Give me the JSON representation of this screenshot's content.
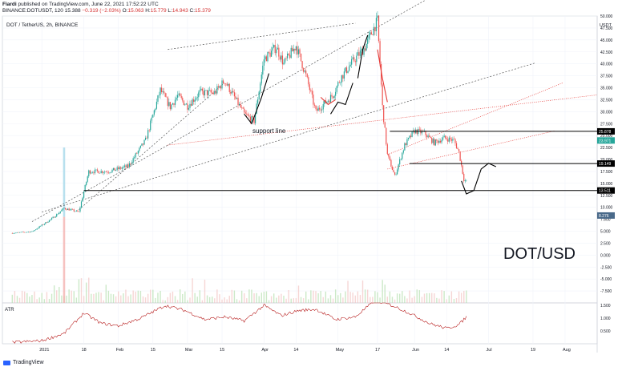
{
  "header": {
    "author": "Fiardi",
    "published": "published on TradingView.com, June 22, 2021 17:52:22 UTC",
    "symbol_line": "BINANCE:DOTUSDT, 120",
    "last": "15.388",
    "change": "−0.319 (−2.03%)",
    "o_label": "O:",
    "o_val": "15.063",
    "h_label": "H:",
    "h_val": "15.779",
    "l_label": "L:",
    "l_val": "14.943",
    "c_label": "C:",
    "c_val": "15.379"
  },
  "chart_title": "DOT / TetherUS, 2h, BINANCE",
  "watermark": "DOT/USD",
  "annotation": "support line",
  "atr_label": "ATR",
  "footer_brand": "TradingView",
  "colors": {
    "up": "#26a69a",
    "down": "#ef5350",
    "atr": "#b71c1c",
    "trend_dashed": "#555555",
    "trend_red": "#e53935",
    "level": "#000000",
    "blue": "#2962ff",
    "watermark": "#131722"
  },
  "chart_data": [
    {
      "type": "line",
      "series": [
        {
          "x": [
            "2020-12-20",
            "2020-12-28",
            "2021-01-05",
            "2021-01-10",
            "2021-01-16",
            "2021-01-20",
            "2021-01-28",
            "2021-02-05",
            "2021-02-12",
            "2021-02-18",
            "2021-02-22",
            "2021-02-25",
            "2021-03-01",
            "2021-03-06",
            "2021-03-12",
            "2021-03-16",
            "2021-03-20",
            "2021-03-24",
            "2021-03-28",
            "2021-04-01",
            "2021-04-06",
            "2021-04-09",
            "2021-04-14",
            "2021-04-18",
            "2021-04-22",
            "2021-04-25",
            "2021-04-29",
            "2021-05-02",
            "2021-05-07",
            "2021-05-12",
            "2021-05-15",
            "2021-05-17",
            "2021-05-19",
            "2021-05-21",
            "2021-05-24",
            "2021-05-28",
            "2021-06-01",
            "2021-06-05",
            "2021-06-09",
            "2021-06-13",
            "2021-06-17",
            "2021-06-19",
            "2021-06-20",
            "2021-06-21",
            "2021-06-22"
          ],
          "y": [
            4.6,
            4.9,
            7.6,
            9.8,
            9.0,
            17.5,
            17.5,
            18.6,
            24.0,
            34.5,
            31.0,
            33.3,
            31.2,
            34.0,
            33.9,
            36.5,
            33.0,
            29.5,
            28.0,
            41.0,
            43.5,
            40.0,
            43.8,
            37.5,
            30.0,
            31.5,
            33.5,
            37.0,
            40.5,
            43.5,
            47.0,
            49.0,
            31.0,
            21.0,
            16.5,
            23.0,
            26.0,
            25.5,
            23.5,
            24.5,
            24.0,
            21.5,
            18.7,
            15.8,
            15.4
          ]
        }
      ],
      "annotations": [
        "support line",
        "DOT/USD"
      ],
      "levels": [
        25.878,
        19.149,
        13.511
      ],
      "ylim": [
        -10,
        50
      ],
      "yticks": [
        -7.5,
        -5.0,
        -2.5,
        0.0,
        2.5,
        5.0,
        7.5,
        10.0,
        12.5,
        15.0,
        17.5,
        20.0,
        22.5,
        25.0,
        27.5,
        30.0,
        32.5,
        35.0,
        37.5,
        40.0,
        42.5,
        45.0,
        47.5,
        50.0
      ],
      "ytick_labels": [
        "-7.500",
        "-5.000",
        "-2.500",
        "0.000",
        "2.500",
        "5.000",
        "7.500",
        "10.000",
        "12.500",
        "15.000",
        "17.500",
        "20.000",
        "22.500",
        "25.000",
        "27.500",
        "30.000",
        "32.500",
        "35.000",
        "37.500",
        "40.000",
        "42.500",
        "45.000",
        "47.500",
        "50.000"
      ],
      "y_unit": "USDT",
      "price_tags": [
        {
          "value": "25.878",
          "kind": "level"
        },
        {
          "value": "23.971",
          "kind": "up"
        },
        {
          "value": "19.149",
          "kind": "level"
        },
        {
          "value": "13.511",
          "kind": "level"
        },
        {
          "value": "8.276",
          "kind": "blue"
        }
      ],
      "xlim": [
        "2020-12-16",
        "2021-08-14"
      ],
      "xticks": [
        {
          "date": "2021-01-01",
          "label": "2021"
        },
        {
          "date": "2021-01-18",
          "label": "18"
        },
        {
          "date": "2021-02-01",
          "label": "Feb"
        },
        {
          "date": "2021-02-15",
          "label": "15"
        },
        {
          "date": "2021-03-01",
          "label": "Mar"
        },
        {
          "date": "2021-03-15",
          "label": "15"
        },
        {
          "date": "2021-04-01",
          "label": "Apr"
        },
        {
          "date": "2021-04-14",
          "label": "14"
        },
        {
          "date": "2021-05-01",
          "label": "May"
        },
        {
          "date": "2021-05-17",
          "label": "17"
        },
        {
          "date": "2021-06-01",
          "label": "Jun"
        },
        {
          "date": "2021-06-14",
          "label": "14"
        },
        {
          "date": "2021-07-01",
          "label": "Jul"
        },
        {
          "date": "2021-07-19",
          "label": "19"
        },
        {
          "date": "2021-08-01",
          "label": "Aug"
        }
      ]
    },
    {
      "type": "line",
      "title": "ATR",
      "series": [
        {
          "x": [
            "2020-12-20",
            "2021-01-01",
            "2021-01-10",
            "2021-01-18",
            "2021-01-25",
            "2021-02-01",
            "2021-02-10",
            "2021-02-20",
            "2021-02-28",
            "2021-03-08",
            "2021-03-16",
            "2021-03-24",
            "2021-04-01",
            "2021-04-08",
            "2021-04-15",
            "2021-04-22",
            "2021-04-30",
            "2021-05-08",
            "2021-05-16",
            "2021-05-23",
            "2021-05-30",
            "2021-06-07",
            "2021-06-14",
            "2021-06-19",
            "2021-06-22"
          ],
          "y": [
            0.05,
            0.12,
            0.4,
            1.2,
            0.8,
            0.7,
            1.0,
            1.5,
            1.3,
            0.95,
            1.05,
            0.9,
            1.5,
            1.1,
            1.3,
            1.35,
            0.95,
            1.05,
            1.7,
            1.5,
            1.2,
            0.8,
            0.6,
            0.75,
            1.05
          ]
        }
      ],
      "ylim": [
        0,
        1.6
      ],
      "yticks": [
        0.5,
        1.0,
        1.5
      ],
      "ytick_labels": [
        "0.500",
        "1.000",
        "1.500"
      ]
    }
  ]
}
